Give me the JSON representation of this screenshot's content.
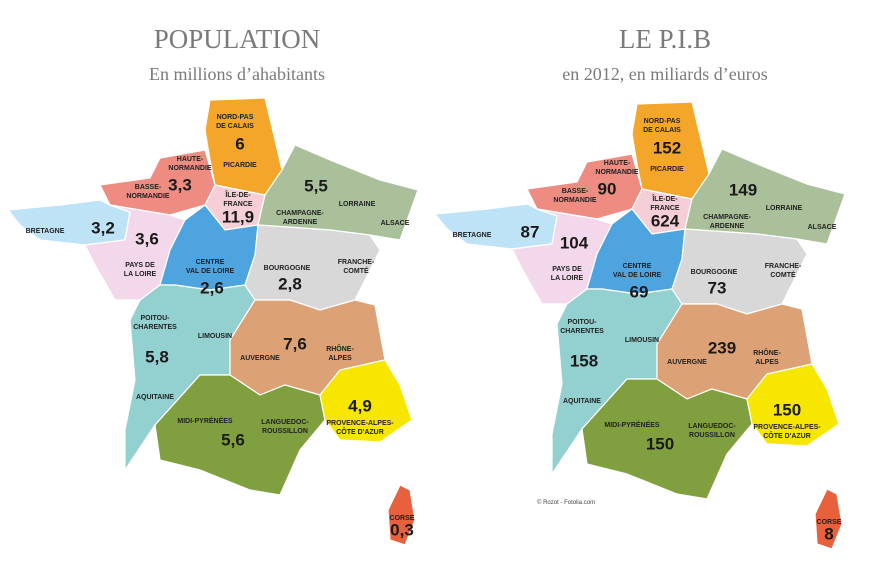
{
  "maps": [
    {
      "title": "POPULATION",
      "subtitle": "En millions d’ahabitants",
      "regions": [
        {
          "labels": [
            "NORD-PAS",
            "DE CALAIS",
            "PICARDIE"
          ],
          "value": "6",
          "color": "#f4a62a"
        },
        {
          "labels": [
            "HAUTE-",
            "NORMANDIE",
            "BASSE-",
            "NORMANDIE"
          ],
          "value": "3,3",
          "color": "#ee8c82"
        },
        {
          "labels": [
            "ÎLE-DE-",
            "FRANCE"
          ],
          "value": "11,9",
          "color": "#f6cfd6"
        },
        {
          "labels": [
            "CHAMPAGNE-",
            "ARDENNE",
            "LORRAINE",
            "ALSACE"
          ],
          "value": "5,5",
          "color": "#a9c09a"
        },
        {
          "labels": [
            "BRETAGNE"
          ],
          "value": "3,2",
          "color": "#bfe3f6"
        },
        {
          "labels": [
            "PAYS DE",
            "LA LOIRE"
          ],
          "value": "3,6",
          "color": "#f3d8ec"
        },
        {
          "labels": [
            "CENTRE",
            "VAL DE LOIRE"
          ],
          "value": "2,6",
          "color": "#4da4de"
        },
        {
          "labels": [
            "BOURGOGNE",
            "FRANCHE-",
            "COMTÉ"
          ],
          "value": "2,8",
          "color": "#d8d8d8"
        },
        {
          "labels": [
            "POITOU-",
            "CHARENTES",
            "LIMOUSIN",
            "AQUITAINE"
          ],
          "value": "5,8",
          "color": "#93d1d0"
        },
        {
          "labels": [
            "AUVERGNE",
            "RHÔNE-",
            "ALPES"
          ],
          "value": "7,6",
          "color": "#dca275"
        },
        {
          "labels": [
            "MIDI-PYRÉNÉES",
            "LANGUEDOC-",
            "ROUSSILLON"
          ],
          "value": "5,6",
          "color": "#80a03f"
        },
        {
          "labels": [
            "PROVENCE-ALPES-",
            "CÔTE D'AZUR"
          ],
          "value": "4,9",
          "color": "#f6e600"
        },
        {
          "labels": [
            "CORSE"
          ],
          "value": "0,3",
          "color": "#e8603c"
        }
      ]
    },
    {
      "title": "LE P.I.B",
      "subtitle": "en 2012, en miliards d’euros",
      "credit": "© Rozot - Fotolia.com",
      "regions": [
        {
          "labels": [
            "NORD-PAS",
            "DE CALAIS",
            "PICARDIE"
          ],
          "value": 152,
          "color": "#f4a62a"
        },
        {
          "labels": [
            "HAUTE-",
            "NORMANDIE",
            "BASSE-",
            "NORMANDIE"
          ],
          "value": 90,
          "color": "#ee8c82"
        },
        {
          "labels": [
            "ÎLE-DE-",
            "FRANCE"
          ],
          "value": 624,
          "color": "#f6cfd6"
        },
        {
          "labels": [
            "CHAMPAGNE-",
            "ARDENNE",
            "LORRAINE",
            "ALSACE"
          ],
          "value": 149,
          "color": "#a9c09a"
        },
        {
          "labels": [
            "BRETAGNE"
          ],
          "value": 87,
          "color": "#bfe3f6"
        },
        {
          "labels": [
            "PAYS DE",
            "LA LOIRE"
          ],
          "value": 104,
          "color": "#f3d8ec"
        },
        {
          "labels": [
            "CENTRE",
            "VAL DE LOIRE"
          ],
          "value": 69,
          "color": "#4da4de"
        },
        {
          "labels": [
            "BOURGOGNE",
            "FRANCHE-",
            "COMTÉ"
          ],
          "value": 73,
          "color": "#d8d8d8"
        },
        {
          "labels": [
            "POITOU-",
            "CHARENTES",
            "LIMOUSIN",
            "AQUITAINE"
          ],
          "value": 158,
          "color": "#93d1d0"
        },
        {
          "labels": [
            "AUVERGNE",
            "RHÔNE-",
            "ALPES"
          ],
          "value": 239,
          "color": "#dca275"
        },
        {
          "labels": [
            "MIDI-PYRÉNÉES",
            "LANGUEDOC-",
            "ROUSSILLON"
          ],
          "value": 150,
          "color": "#80a03f"
        },
        {
          "labels": [
            "PROVENCE-ALPES-",
            "CÔTE D'AZUR"
          ],
          "value": 150,
          "color": "#f6e600"
        },
        {
          "labels": [
            "CORSE"
          ],
          "value": 8,
          "color": "#e8603c"
        }
      ]
    }
  ]
}
